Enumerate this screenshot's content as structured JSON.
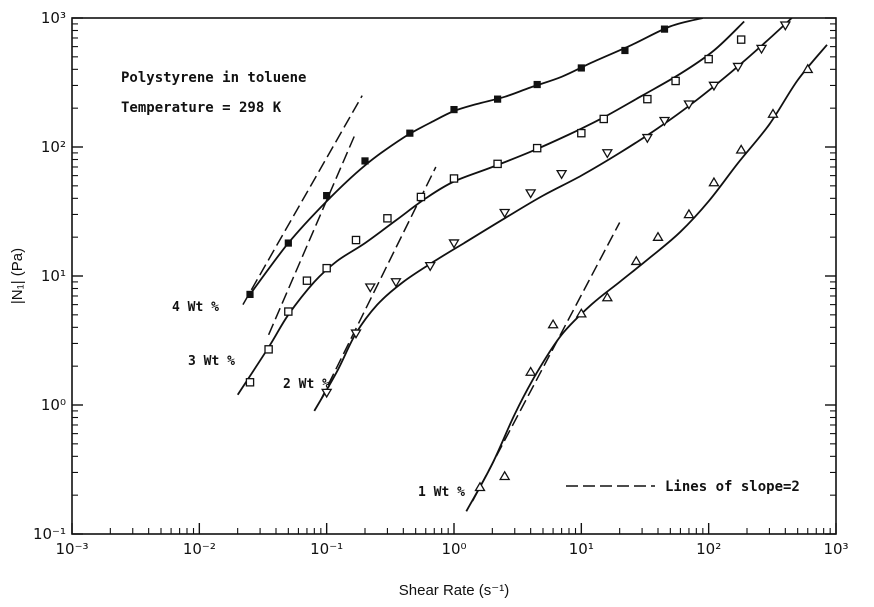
{
  "chart_data": {
    "type": "scatter",
    "title": "",
    "xlabel": "Shear Rate (s⁻¹)",
    "ylabel": "|N₁| (Pa)",
    "xscale": "log",
    "yscale": "log",
    "xlim": [
      0.001,
      1000
    ],
    "ylim": [
      0.1,
      1000
    ],
    "grid": false,
    "x_tick_labels": [
      "10⁻³",
      "10⁻²",
      "10⁻¹",
      "10⁰",
      "10¹",
      "10²",
      "10³"
    ],
    "y_tick_labels": [
      "10⁻¹",
      "10⁰",
      "10¹",
      "10²",
      "10³"
    ],
    "annotations": {
      "system": "Polystyrene in toluene",
      "temperature": "Temperature = 298 K",
      "legend_line": "Lines of slope=2"
    },
    "series": [
      {
        "name": "4 Wt %",
        "marker": "filled-square",
        "x": [
          0.025,
          0.05,
          0.1,
          0.2,
          0.45,
          1.0,
          2.2,
          4.5,
          10,
          22,
          45
        ],
        "y": [
          7.2,
          18,
          42,
          78,
          128,
          195,
          235,
          305,
          410,
          560,
          820
        ],
        "fit": {
          "x": [
            0.024,
            0.05,
            0.1,
            0.2,
            0.4,
            0.7,
            1.0,
            1.5,
            2.5,
            4,
            7,
            12,
            25,
            50,
            90
          ],
          "y": [
            6.8,
            18,
            38,
            72,
            118,
            160,
            190,
            215,
            245,
            290,
            350,
            450,
            620,
            860,
            1000
          ]
        },
        "slope2": {
          "x": [
            0.022,
            0.19
          ],
          "y": [
            6.0,
            250
          ]
        }
      },
      {
        "name": "3 Wt %",
        "marker": "open-square",
        "x": [
          0.025,
          0.035,
          0.05,
          0.07,
          0.1,
          0.17,
          0.3,
          0.55,
          1.0,
          2.2,
          4.5,
          10,
          15,
          33,
          55,
          100,
          180
        ],
        "y": [
          1.5,
          2.7,
          5.3,
          9.2,
          11.5,
          19,
          28,
          41,
          57,
          74,
          98,
          128,
          165,
          235,
          325,
          480,
          680
        ],
        "fit": {
          "x": [
            0.02,
            0.035,
            0.05,
            0.08,
            0.12,
            0.2,
            0.35,
            0.6,
            1.0,
            2,
            4,
            8,
            15,
            30,
            60,
            110,
            190
          ],
          "y": [
            1.2,
            2.8,
            5.0,
            9.0,
            13,
            18,
            27,
            40,
            54,
            70,
            92,
            125,
            170,
            250,
            370,
            560,
            940
          ]
        },
        "slope2": {
          "x": [
            0.035,
            0.17
          ],
          "y": [
            3.5,
            130
          ]
        }
      },
      {
        "name": "2 Wt %",
        "marker": "open-triangle-down",
        "x": [
          0.1,
          0.17,
          0.22,
          0.35,
          0.65,
          1.0,
          2.5,
          4,
          7,
          16,
          33,
          45,
          70,
          110,
          170,
          260,
          400
        ],
        "y": [
          1.25,
          3.6,
          8.2,
          9.0,
          12,
          18,
          31,
          44,
          62,
          90,
          118,
          160,
          215,
          300,
          420,
          580,
          880
        ],
        "fit": {
          "x": [
            0.08,
            0.12,
            0.17,
            0.25,
            0.4,
            0.7,
            1.2,
            2.5,
            5,
            10,
            20,
            40,
            80,
            150,
            280,
            450
          ],
          "y": [
            0.9,
            1.8,
            3.6,
            6.0,
            9.0,
            13,
            18,
            28,
            42,
            60,
            90,
            140,
            230,
            380,
            650,
            1000
          ]
        },
        "slope2": {
          "x": [
            0.09,
            0.72
          ],
          "y": [
            1.1,
            70
          ]
        }
      },
      {
        "name": "1 Wt %",
        "marker": "open-triangle-up",
        "x": [
          1.6,
          2.5,
          4,
          6,
          10,
          16,
          27,
          40,
          70,
          110,
          180,
          320,
          600
        ],
        "y": [
          0.23,
          0.28,
          1.8,
          4.2,
          5.1,
          6.8,
          13,
          20,
          30,
          53,
          95,
          180,
          400
        ],
        "fit": {
          "x": [
            1.25,
            2,
            3,
            4.5,
            7,
            12,
            20,
            35,
            60,
            100,
            170,
            300,
            500,
            850
          ],
          "y": [
            0.15,
            0.35,
            0.85,
            1.8,
            3.5,
            6.0,
            9.0,
            14,
            22,
            38,
            75,
            150,
            330,
            620
          ]
        },
        "slope2": {
          "x": [
            1.4,
            20
          ],
          "y": [
            0.18,
            26
          ]
        }
      }
    ]
  }
}
